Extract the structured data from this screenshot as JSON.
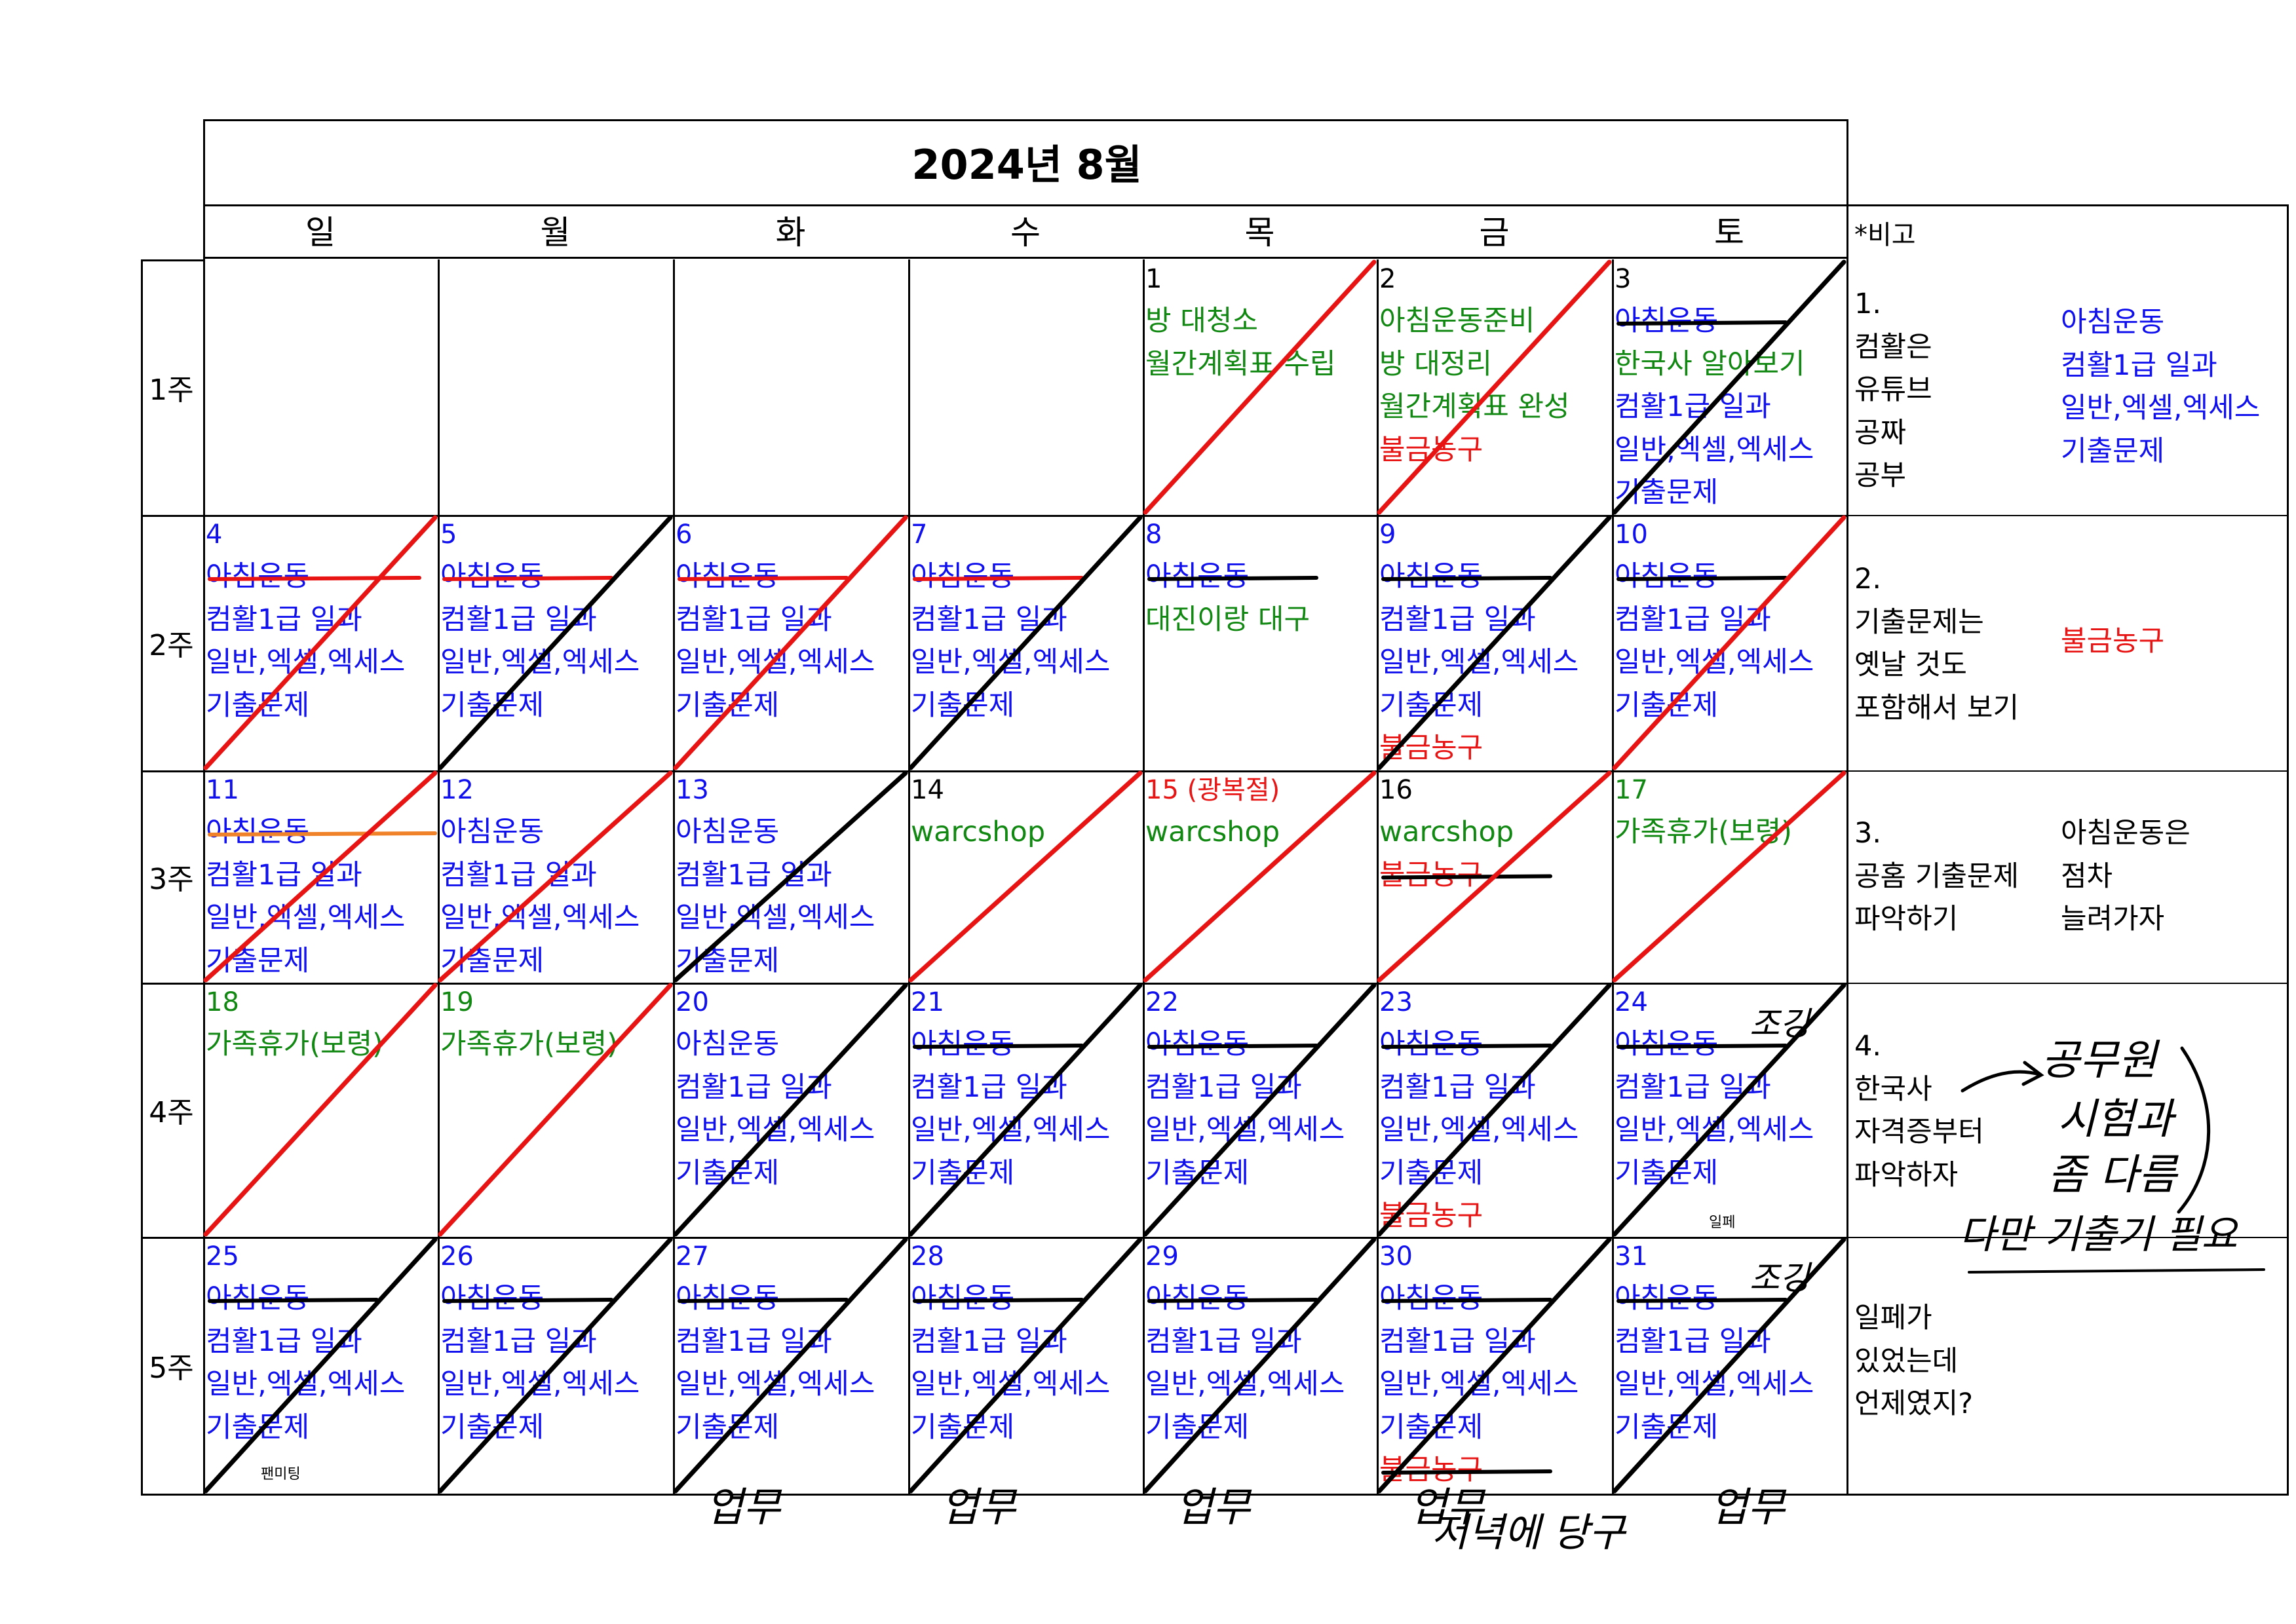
{
  "title": "2024년 8월",
  "days": [
    "일",
    "월",
    "화",
    "수",
    "목",
    "금",
    "토"
  ],
  "weeks": [
    "1주",
    "2주",
    "3주",
    "4주",
    "5주"
  ],
  "colors": {
    "blue": "#1010ee",
    "green": "#118811",
    "red": "#e81414",
    "orange": "#f0822a",
    "strike_black": "#000000"
  },
  "cells": [
    [
      {
        "date": "",
        "items": []
      },
      {
        "date": "",
        "items": []
      },
      {
        "date": "",
        "items": []
      },
      {
        "date": "",
        "items": []
      },
      {
        "date": "1",
        "date_color": "black",
        "items": [
          {
            "t": "방 대청소",
            "c": "green"
          },
          {
            "t": "월간계획표 수립",
            "c": "green"
          }
        ],
        "slash": "red"
      },
      {
        "date": "2",
        "date_color": "black",
        "items": [
          {
            "t": "아침운동준비",
            "c": "green"
          },
          {
            "t": "방 대정리",
            "c": "green"
          },
          {
            "t": "월간계획표 완성",
            "c": "green"
          },
          {
            "t": "불금농구",
            "c": "red"
          }
        ],
        "slash": "red"
      },
      {
        "date": "3",
        "date_color": "black",
        "items": [
          {
            "t": "아침운동",
            "c": "blue",
            "strike": "black"
          },
          {
            "t": "한국사 알아보기",
            "c": "green"
          },
          {
            "t": "컴활1급 일과",
            "c": "blue"
          },
          {
            "t": "일반,엑셀,엑세스",
            "c": "blue"
          },
          {
            "t": "기출문제",
            "c": "blue"
          }
        ],
        "slash": "black"
      }
    ],
    [
      {
        "date": "4",
        "date_color": "blue",
        "items": [
          {
            "t": "아침운동",
            "c": "blue",
            "strike": "red"
          },
          {
            "t": "컴활1급 일과",
            "c": "blue"
          },
          {
            "t": "일반,엑셀,엑세스",
            "c": "blue"
          },
          {
            "t": "기출문제",
            "c": "blue"
          }
        ],
        "slash": "red"
      },
      {
        "date": "5",
        "date_color": "blue",
        "items": [
          {
            "t": "아침운동",
            "c": "blue",
            "strike": "red"
          },
          {
            "t": "컴활1급 일과",
            "c": "blue"
          },
          {
            "t": "일반,엑셀,엑세스",
            "c": "blue"
          },
          {
            "t": "기출문제",
            "c": "blue"
          }
        ],
        "slash": "black"
      },
      {
        "date": "6",
        "date_color": "blue",
        "items": [
          {
            "t": "아침운동",
            "c": "blue",
            "strike": "red"
          },
          {
            "t": "컴활1급 일과",
            "c": "blue"
          },
          {
            "t": "일반,엑셀,엑세스",
            "c": "blue"
          },
          {
            "t": "기출문제",
            "c": "blue"
          }
        ],
        "slash": "red"
      },
      {
        "date": "7",
        "date_color": "blue",
        "items": [
          {
            "t": "아침운동",
            "c": "blue",
            "strike": "red"
          },
          {
            "t": "컴활1급 일과",
            "c": "blue"
          },
          {
            "t": "일반,엑셀,엑세스",
            "c": "blue"
          },
          {
            "t": "기출문제",
            "c": "blue"
          }
        ],
        "slash": "black"
      },
      {
        "date": "8",
        "date_color": "blue",
        "items": [
          {
            "t": "아침운동",
            "c": "blue",
            "strike": "black"
          },
          {
            "t": "대진이랑 대구",
            "c": "green"
          }
        ],
        "slash": "none"
      },
      {
        "date": "9",
        "date_color": "blue",
        "items": [
          {
            "t": "아침운동",
            "c": "blue",
            "strike": "black"
          },
          {
            "t": "컴활1급 일과",
            "c": "blue"
          },
          {
            "t": "일반,엑셀,엑세스",
            "c": "blue"
          },
          {
            "t": "기출문제",
            "c": "blue"
          },
          {
            "t": "불금농구",
            "c": "red"
          }
        ],
        "slash": "black"
      },
      {
        "date": "10",
        "date_color": "blue",
        "items": [
          {
            "t": "아침운동",
            "c": "blue",
            "strike": "black"
          },
          {
            "t": "컴활1급 일과",
            "c": "blue"
          },
          {
            "t": "일반,엑셀,엑세스",
            "c": "blue"
          },
          {
            "t": "기출문제",
            "c": "blue"
          }
        ],
        "slash": "red"
      }
    ],
    [
      {
        "date": "11",
        "date_color": "blue",
        "items": [
          {
            "t": "아침운동",
            "c": "blue",
            "strike": "orange"
          },
          {
            "t": "컴활1급 일과",
            "c": "blue"
          },
          {
            "t": "일반,엑셀,엑세스",
            "c": "blue"
          },
          {
            "t": "기출문제",
            "c": "blue"
          }
        ],
        "slash": "red"
      },
      {
        "date": "12",
        "date_color": "blue",
        "items": [
          {
            "t": "아침운동",
            "c": "blue"
          },
          {
            "t": "컴활1급 일과",
            "c": "blue"
          },
          {
            "t": "일반,엑셀,엑세스",
            "c": "blue"
          },
          {
            "t": "기출문제",
            "c": "blue"
          }
        ],
        "slash": "red"
      },
      {
        "date": "13",
        "date_color": "blue",
        "items": [
          {
            "t": "아침운동",
            "c": "blue"
          },
          {
            "t": "컴활1급 일과",
            "c": "blue"
          },
          {
            "t": "일반,엑셀,엑세스",
            "c": "blue"
          },
          {
            "t": "기출문제",
            "c": "blue"
          }
        ],
        "slash": "black"
      },
      {
        "date": "14",
        "date_color": "black",
        "items": [
          {
            "t": "warcshop",
            "c": "green"
          }
        ],
        "slash": "red"
      },
      {
        "date": "15 (광복절)",
        "date_color": "red",
        "items": [
          {
            "t": "warcshop",
            "c": "green"
          }
        ],
        "slash": "red"
      },
      {
        "date": "16",
        "date_color": "black",
        "items": [
          {
            "t": "warcshop",
            "c": "green"
          },
          {
            "t": "불금농구",
            "c": "red",
            "strike": "black"
          }
        ],
        "slash": "red"
      },
      {
        "date": "17",
        "date_color": "green",
        "items": [
          {
            "t": "가족휴가(보령)",
            "c": "green"
          }
        ],
        "slash": "red"
      }
    ],
    [
      {
        "date": "18",
        "date_color": "green",
        "items": [
          {
            "t": "가족휴가(보령)",
            "c": "green"
          }
        ],
        "slash": "red"
      },
      {
        "date": "19",
        "date_color": "green",
        "items": [
          {
            "t": "가족휴가(보령)",
            "c": "green"
          }
        ],
        "slash": "red"
      },
      {
        "date": "20",
        "date_color": "blue",
        "items": [
          {
            "t": "아침운동",
            "c": "blue"
          },
          {
            "t": "컴활1급 일과",
            "c": "blue"
          },
          {
            "t": "일반,엑셀,엑세스",
            "c": "blue"
          },
          {
            "t": "기출문제",
            "c": "blue"
          }
        ],
        "slash": "black"
      },
      {
        "date": "21",
        "date_color": "blue",
        "items": [
          {
            "t": "아침운동",
            "c": "blue",
            "strike": "black"
          },
          {
            "t": "컴활1급 일과",
            "c": "blue"
          },
          {
            "t": "일반,엑셀,엑세스",
            "c": "blue"
          },
          {
            "t": "기출문제",
            "c": "blue"
          }
        ],
        "slash": "black"
      },
      {
        "date": "22",
        "date_color": "blue",
        "items": [
          {
            "t": "아침운동",
            "c": "blue",
            "strike": "black"
          },
          {
            "t": "컴활1급 일과",
            "c": "blue"
          },
          {
            "t": "일반,엑셀,엑세스",
            "c": "blue"
          },
          {
            "t": "기출문제",
            "c": "blue"
          }
        ],
        "slash": "black"
      },
      {
        "date": "23",
        "date_color": "blue",
        "items": [
          {
            "t": "아침운동",
            "c": "blue",
            "strike": "black"
          },
          {
            "t": "컴활1급 일과",
            "c": "blue"
          },
          {
            "t": "일반,엑셀,엑세스",
            "c": "blue"
          },
          {
            "t": "기출문제",
            "c": "blue"
          },
          {
            "t": "불금농구",
            "c": "red"
          }
        ],
        "slash": "black"
      },
      {
        "date": "24",
        "date_color": "blue",
        "items": [
          {
            "t": "아침운동",
            "c": "blue",
            "strike": "black"
          },
          {
            "t": "컴활1급 일과",
            "c": "blue"
          },
          {
            "t": "일반,엑셀,엑세스",
            "c": "blue"
          },
          {
            "t": "기출문제",
            "c": "blue"
          }
        ],
        "slash": "black",
        "small": "일페",
        "hand": "조깅"
      }
    ],
    [
      {
        "date": "25",
        "date_color": "blue",
        "items": [
          {
            "t": "아침운동",
            "c": "blue",
            "strike": "black"
          },
          {
            "t": "컴활1급 일과",
            "c": "blue"
          },
          {
            "t": "일반,엑셀,엑세스",
            "c": "blue"
          },
          {
            "t": "기출문제",
            "c": "blue"
          }
        ],
        "slash": "black",
        "small": "팬미팅"
      },
      {
        "date": "26",
        "date_color": "blue",
        "items": [
          {
            "t": "아침운동",
            "c": "blue",
            "strike": "black"
          },
          {
            "t": "컴활1급 일과",
            "c": "blue"
          },
          {
            "t": "일반,엑셀,엑세스",
            "c": "blue"
          },
          {
            "t": "기출문제",
            "c": "blue"
          }
        ],
        "slash": "black"
      },
      {
        "date": "27",
        "date_color": "blue",
        "items": [
          {
            "t": "아침운동",
            "c": "blue",
            "strike": "black"
          },
          {
            "t": "컴활1급 일과",
            "c": "blue"
          },
          {
            "t": "일반,엑셀,엑세스",
            "c": "blue"
          },
          {
            "t": "기출문제",
            "c": "blue"
          }
        ],
        "slash": "black",
        "hand": "업무"
      },
      {
        "date": "28",
        "date_color": "blue",
        "items": [
          {
            "t": "아침운동",
            "c": "blue",
            "strike": "black"
          },
          {
            "t": "컴활1급 일과",
            "c": "blue"
          },
          {
            "t": "일반,엑셀,엑세스",
            "c": "blue"
          },
          {
            "t": "기출문제",
            "c": "blue"
          }
        ],
        "slash": "black",
        "hand": "업무"
      },
      {
        "date": "29",
        "date_color": "blue",
        "items": [
          {
            "t": "아침운동",
            "c": "blue",
            "strike": "black"
          },
          {
            "t": "컴활1급 일과",
            "c": "blue"
          },
          {
            "t": "일반,엑셀,엑세스",
            "c": "blue"
          },
          {
            "t": "기출문제",
            "c": "blue"
          }
        ],
        "slash": "black",
        "hand": "업무"
      },
      {
        "date": "30",
        "date_color": "blue",
        "items": [
          {
            "t": "아침운동",
            "c": "blue",
            "strike": "black"
          },
          {
            "t": "컴활1급 일과",
            "c": "blue"
          },
          {
            "t": "일반,엑셀,엑세스",
            "c": "blue"
          },
          {
            "t": "기출문제",
            "c": "blue"
          },
          {
            "t": "불금농구",
            "c": "red",
            "strike": "black"
          }
        ],
        "slash": "black",
        "hand": "업무"
      },
      {
        "date": "31",
        "date_color": "blue",
        "items": [
          {
            "t": "아침운동",
            "c": "blue",
            "strike": "black"
          },
          {
            "t": "컴활1급 일과",
            "c": "blue"
          },
          {
            "t": "일반,엑셀,엑세스",
            "c": "blue"
          },
          {
            "t": "기출문제",
            "c": "blue"
          }
        ],
        "slash": "black",
        "hand": "조깅",
        "hand2": "업무"
      }
    ]
  ],
  "notes": {
    "header": "*비고",
    "n1": {
      "left": [
        "1.",
        "컴활은",
        "유튜브",
        "공짜",
        "공부"
      ],
      "right": [
        {
          "t": "아침운동",
          "c": "blue"
        },
        {
          "t": "컴활1급 일과",
          "c": "blue"
        },
        {
          "t": "일반,엑셀,엑세스",
          "c": "blue"
        },
        {
          "t": "기출문제",
          "c": "blue"
        }
      ]
    },
    "n2": {
      "left": [
        "2.",
        "기출문제는",
        "옛날 것도",
        "포함해서 보기"
      ],
      "right": [
        {
          "t": "불금농구",
          "c": "red"
        }
      ]
    },
    "n3": {
      "left": [
        "3.",
        "공홈 기출문제",
        "파악하기"
      ],
      "right": [
        {
          "t": "아침운동은",
          "c": "black"
        },
        {
          "t": "점차",
          "c": "black"
        },
        {
          "t": "늘려가자",
          "c": "black"
        }
      ]
    },
    "n4": {
      "left": [
        "4.",
        "한국사",
        "자격증부터",
        "파악하자"
      ]
    },
    "n5": {
      "left": [
        "일페가",
        "있었는데",
        "언제였지?"
      ]
    }
  },
  "handwriting": {
    "note4_a": "공무원",
    "note4_b": "시험과",
    "note4_c": "좀 다름",
    "note4_d": "다만 기출기 필요",
    "bottom": "저녁에 당구"
  }
}
